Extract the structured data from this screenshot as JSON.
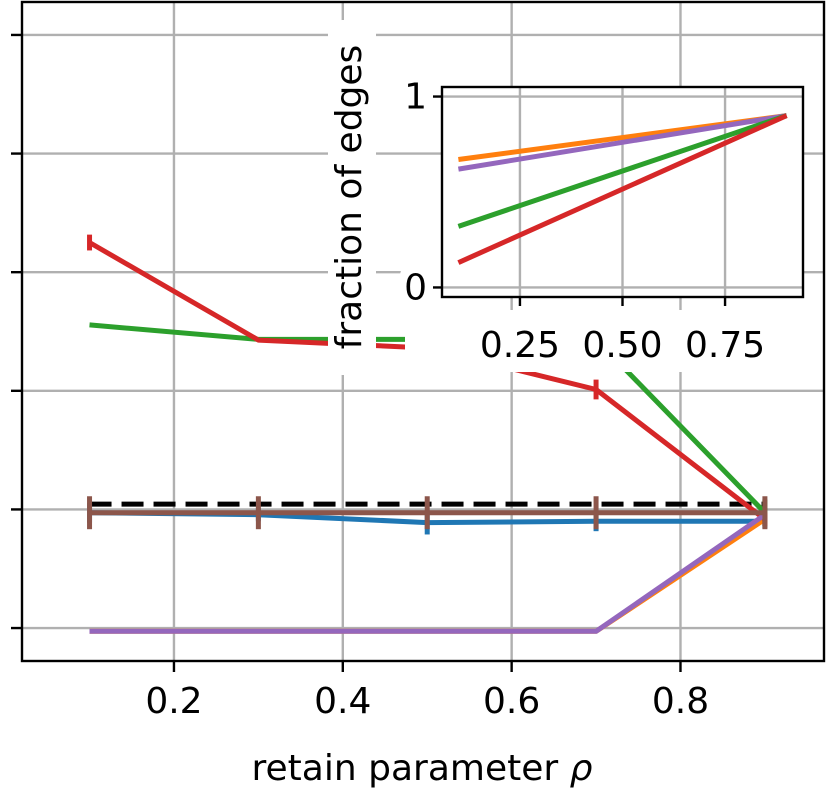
{
  "chart_data": [
    {
      "id": "main",
      "type": "line",
      "xlabel": "retain parameter ρ",
      "xlabel_text": "retain parameter ",
      "xlabel_symbol": "ρ",
      "ylabel": "",
      "title": "",
      "xlim": [
        0.02,
        0.97
      ],
      "ylim": [
        0.0,
        1.0
      ],
      "x_ticks": [
        0.2,
        0.4,
        0.6,
        0.8
      ],
      "x_tick_labels": [
        "0.2",
        "0.4",
        "0.6",
        "0.8"
      ],
      "y_ticks": [
        0.05,
        0.23,
        0.41,
        0.59,
        0.77,
        0.95
      ],
      "y_tick_labels": [
        "",
        "",
        "",
        "",
        "",
        ""
      ],
      "grid": true,
      "x": [
        0.1,
        0.3,
        0.5,
        0.7,
        0.9
      ],
      "series": [
        {
          "color": "#1f77b4",
          "values": [
            0.225,
            0.222,
            0.21,
            0.212,
            0.212
          ],
          "errors": [
            0.015,
            0.01,
            0.018,
            0.015,
            0.01
          ]
        },
        {
          "color": "#ff7f0e",
          "values": [
            0.045,
            0.045,
            0.045,
            0.045,
            0.215
          ],
          "errors": [
            0.0,
            0.0,
            0.0,
            0.0,
            0.0
          ]
        },
        {
          "color": "#2ca02c",
          "values": [
            0.51,
            0.488,
            0.488,
            0.488,
            0.225
          ],
          "errors": [
            0.0,
            0.0,
            0.0,
            0.0,
            0.02
          ]
        },
        {
          "color": "#d62728",
          "values": [
            0.635,
            0.487,
            0.475,
            0.412,
            0.215
          ],
          "errors": [
            0.012,
            0.0,
            0.008,
            0.015,
            0.01
          ]
        },
        {
          "color": "#9467bd",
          "values": [
            0.045,
            0.045,
            0.045,
            0.045,
            0.222
          ],
          "errors": [
            0.0,
            0.0,
            0.0,
            0.0,
            0.0
          ]
        },
        {
          "color": "#8c564b",
          "values": [
            0.225,
            0.225,
            0.225,
            0.225,
            0.225
          ],
          "errors": [
            0.025,
            0.025,
            0.025,
            0.025,
            0.025
          ]
        }
      ],
      "reference_line": {
        "color": "#000000",
        "style": "dashed",
        "value": 0.238
      }
    },
    {
      "id": "inset",
      "type": "line",
      "xlabel": "",
      "ylabel": "fraction of edges",
      "title": "",
      "xlim": [
        0.06,
        0.94
      ],
      "ylim": [
        -0.05,
        1.05
      ],
      "x_ticks": [
        0.25,
        0.5,
        0.75
      ],
      "x_tick_labels": [
        "0.25",
        "0.50",
        "0.75"
      ],
      "y_ticks": [
        0,
        1
      ],
      "y_tick_labels": [
        "0",
        "1"
      ],
      "grid": true,
      "x": [
        0.1,
        0.9
      ],
      "series": [
        {
          "color": "#ff7f0e",
          "values": [
            0.67,
            0.9
          ]
        },
        {
          "color": "#9467bd",
          "values": [
            0.62,
            0.9
          ]
        },
        {
          "color": "#2ca02c",
          "values": [
            0.32,
            0.9
          ]
        },
        {
          "color": "#d62728",
          "values": [
            0.13,
            0.9
          ]
        }
      ]
    }
  ]
}
